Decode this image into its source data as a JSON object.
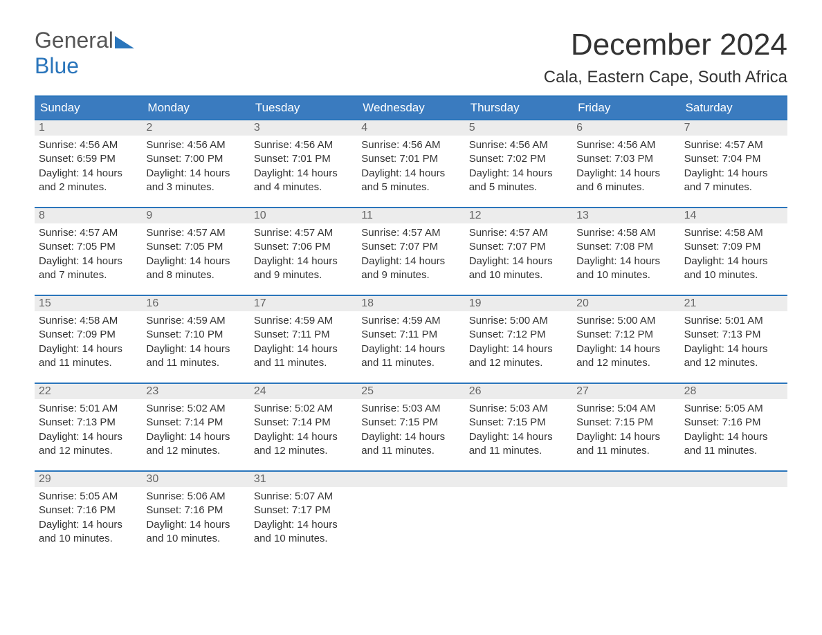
{
  "brand": {
    "part1": "General",
    "part2": "Blue"
  },
  "title": "December 2024",
  "location": "Cala, Eastern Cape, South Africa",
  "colors": {
    "header_bg": "#3a7bbf",
    "border": "#2a75bb",
    "daynum_bg": "#ececec",
    "text": "#333333",
    "brand_blue": "#2a75bb"
  },
  "dow": [
    "Sunday",
    "Monday",
    "Tuesday",
    "Wednesday",
    "Thursday",
    "Friday",
    "Saturday"
  ],
  "days": [
    {
      "n": "1",
      "sr": "Sunrise: 4:56 AM",
      "ss": "Sunset: 6:59 PM",
      "dl": "Daylight: 14 hours and 2 minutes."
    },
    {
      "n": "2",
      "sr": "Sunrise: 4:56 AM",
      "ss": "Sunset: 7:00 PM",
      "dl": "Daylight: 14 hours and 3 minutes."
    },
    {
      "n": "3",
      "sr": "Sunrise: 4:56 AM",
      "ss": "Sunset: 7:01 PM",
      "dl": "Daylight: 14 hours and 4 minutes."
    },
    {
      "n": "4",
      "sr": "Sunrise: 4:56 AM",
      "ss": "Sunset: 7:01 PM",
      "dl": "Daylight: 14 hours and 5 minutes."
    },
    {
      "n": "5",
      "sr": "Sunrise: 4:56 AM",
      "ss": "Sunset: 7:02 PM",
      "dl": "Daylight: 14 hours and 5 minutes."
    },
    {
      "n": "6",
      "sr": "Sunrise: 4:56 AM",
      "ss": "Sunset: 7:03 PM",
      "dl": "Daylight: 14 hours and 6 minutes."
    },
    {
      "n": "7",
      "sr": "Sunrise: 4:57 AM",
      "ss": "Sunset: 7:04 PM",
      "dl": "Daylight: 14 hours and 7 minutes."
    },
    {
      "n": "8",
      "sr": "Sunrise: 4:57 AM",
      "ss": "Sunset: 7:05 PM",
      "dl": "Daylight: 14 hours and 7 minutes."
    },
    {
      "n": "9",
      "sr": "Sunrise: 4:57 AM",
      "ss": "Sunset: 7:05 PM",
      "dl": "Daylight: 14 hours and 8 minutes."
    },
    {
      "n": "10",
      "sr": "Sunrise: 4:57 AM",
      "ss": "Sunset: 7:06 PM",
      "dl": "Daylight: 14 hours and 9 minutes."
    },
    {
      "n": "11",
      "sr": "Sunrise: 4:57 AM",
      "ss": "Sunset: 7:07 PM",
      "dl": "Daylight: 14 hours and 9 minutes."
    },
    {
      "n": "12",
      "sr": "Sunrise: 4:57 AM",
      "ss": "Sunset: 7:07 PM",
      "dl": "Daylight: 14 hours and 10 minutes."
    },
    {
      "n": "13",
      "sr": "Sunrise: 4:58 AM",
      "ss": "Sunset: 7:08 PM",
      "dl": "Daylight: 14 hours and 10 minutes."
    },
    {
      "n": "14",
      "sr": "Sunrise: 4:58 AM",
      "ss": "Sunset: 7:09 PM",
      "dl": "Daylight: 14 hours and 10 minutes."
    },
    {
      "n": "15",
      "sr": "Sunrise: 4:58 AM",
      "ss": "Sunset: 7:09 PM",
      "dl": "Daylight: 14 hours and 11 minutes."
    },
    {
      "n": "16",
      "sr": "Sunrise: 4:59 AM",
      "ss": "Sunset: 7:10 PM",
      "dl": "Daylight: 14 hours and 11 minutes."
    },
    {
      "n": "17",
      "sr": "Sunrise: 4:59 AM",
      "ss": "Sunset: 7:11 PM",
      "dl": "Daylight: 14 hours and 11 minutes."
    },
    {
      "n": "18",
      "sr": "Sunrise: 4:59 AM",
      "ss": "Sunset: 7:11 PM",
      "dl": "Daylight: 14 hours and 11 minutes."
    },
    {
      "n": "19",
      "sr": "Sunrise: 5:00 AM",
      "ss": "Sunset: 7:12 PM",
      "dl": "Daylight: 14 hours and 12 minutes."
    },
    {
      "n": "20",
      "sr": "Sunrise: 5:00 AM",
      "ss": "Sunset: 7:12 PM",
      "dl": "Daylight: 14 hours and 12 minutes."
    },
    {
      "n": "21",
      "sr": "Sunrise: 5:01 AM",
      "ss": "Sunset: 7:13 PM",
      "dl": "Daylight: 14 hours and 12 minutes."
    },
    {
      "n": "22",
      "sr": "Sunrise: 5:01 AM",
      "ss": "Sunset: 7:13 PM",
      "dl": "Daylight: 14 hours and 12 minutes."
    },
    {
      "n": "23",
      "sr": "Sunrise: 5:02 AM",
      "ss": "Sunset: 7:14 PM",
      "dl": "Daylight: 14 hours and 12 minutes."
    },
    {
      "n": "24",
      "sr": "Sunrise: 5:02 AM",
      "ss": "Sunset: 7:14 PM",
      "dl": "Daylight: 14 hours and 12 minutes."
    },
    {
      "n": "25",
      "sr": "Sunrise: 5:03 AM",
      "ss": "Sunset: 7:15 PM",
      "dl": "Daylight: 14 hours and 11 minutes."
    },
    {
      "n": "26",
      "sr": "Sunrise: 5:03 AM",
      "ss": "Sunset: 7:15 PM",
      "dl": "Daylight: 14 hours and 11 minutes."
    },
    {
      "n": "27",
      "sr": "Sunrise: 5:04 AM",
      "ss": "Sunset: 7:15 PM",
      "dl": "Daylight: 14 hours and 11 minutes."
    },
    {
      "n": "28",
      "sr": "Sunrise: 5:05 AM",
      "ss": "Sunset: 7:16 PM",
      "dl": "Daylight: 14 hours and 11 minutes."
    },
    {
      "n": "29",
      "sr": "Sunrise: 5:05 AM",
      "ss": "Sunset: 7:16 PM",
      "dl": "Daylight: 14 hours and 10 minutes."
    },
    {
      "n": "30",
      "sr": "Sunrise: 5:06 AM",
      "ss": "Sunset: 7:16 PM",
      "dl": "Daylight: 14 hours and 10 minutes."
    },
    {
      "n": "31",
      "sr": "Sunrise: 5:07 AM",
      "ss": "Sunset: 7:17 PM",
      "dl": "Daylight: 14 hours and 10 minutes."
    }
  ],
  "layout": {
    "columns": 7,
    "first_day_col": 0,
    "trailing_empty": 4
  }
}
